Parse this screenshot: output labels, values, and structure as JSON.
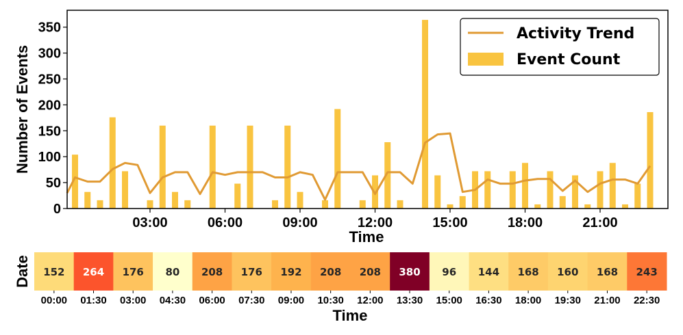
{
  "chart_data": [
    {
      "type": "bar+line",
      "title": "",
      "xlabel": "Time",
      "ylabel": "Number of Events",
      "xticks": [
        "03:00",
        "06:00",
        "09:00",
        "12:00",
        "15:00",
        "18:00",
        "21:00"
      ],
      "yticks": [
        0,
        50,
        100,
        150,
        200,
        250,
        300,
        350
      ],
      "ylim": [
        0,
        360
      ],
      "grid": false,
      "legend_position": "top-right",
      "series": [
        {
          "name": "Activity Trend",
          "type": "line",
          "color": "#e09a33",
          "x": [
            "00:00",
            "00:30",
            "01:00",
            "01:30",
            "02:00",
            "02:30",
            "03:00",
            "03:30",
            "04:00",
            "04:30",
            "05:00",
            "05:30",
            "06:00",
            "06:30",
            "07:00",
            "07:30",
            "08:00",
            "08:30",
            "09:00",
            "09:30",
            "10:00",
            "10:30",
            "11:00",
            "11:30",
            "12:00",
            "12:30",
            "13:00",
            "13:30",
            "14:00",
            "14:30",
            "15:00",
            "15:30",
            "16:00",
            "16:30",
            "17:00",
            "17:30",
            "18:00",
            "18:30",
            "19:00",
            "19:30",
            "20:00",
            "20:30",
            "21:00",
            "21:30",
            "22:00",
            "22:30",
            "23:00"
          ],
          "values": [
            60,
            52,
            52,
            76,
            88,
            84,
            30,
            60,
            70,
            70,
            28,
            70,
            65,
            70,
            70,
            70,
            60,
            60,
            70,
            65,
            17,
            70,
            70,
            70,
            28,
            70,
            70,
            48,
            127,
            143,
            145,
            32,
            36,
            56,
            48,
            48,
            54,
            57,
            57,
            34,
            54,
            32,
            48,
            56,
            56,
            48,
            82
          ]
        },
        {
          "name": "Event Count",
          "type": "bar",
          "color": "#f9c440",
          "x": [
            "00:00",
            "00:30",
            "01:00",
            "01:30",
            "02:00",
            "02:30",
            "03:00",
            "03:30",
            "04:00",
            "04:30",
            "05:00",
            "05:30",
            "06:00",
            "06:30",
            "07:00",
            "07:30",
            "08:00",
            "08:30",
            "09:00",
            "09:30",
            "10:00",
            "10:30",
            "11:00",
            "11:30",
            "12:00",
            "12:30",
            "13:00",
            "13:30",
            "14:00",
            "14:30",
            "15:00",
            "15:30",
            "16:00",
            "16:30",
            "17:00",
            "17:30",
            "18:00",
            "18:30",
            "19:00",
            "19:30",
            "20:00",
            "20:30",
            "21:00",
            "21:30",
            "22:00",
            "22:30",
            "23:00"
          ],
          "values": [
            104,
            32,
            16,
            176,
            72,
            0,
            16,
            160,
            32,
            16,
            0,
            160,
            0,
            48,
            160,
            0,
            16,
            160,
            32,
            0,
            16,
            192,
            0,
            16,
            64,
            128,
            16,
            0,
            364,
            64,
            8,
            24,
            72,
            72,
            0,
            72,
            88,
            8,
            72,
            24,
            64,
            8,
            72,
            88,
            8,
            48,
            186
          ]
        }
      ]
    },
    {
      "type": "heatmap",
      "xlabel": "Time",
      "ylabel": "Date",
      "x": [
        "00:00",
        "01:30",
        "03:00",
        "04:30",
        "06:00",
        "07:30",
        "09:00",
        "10:30",
        "12:00",
        "13:30",
        "15:00",
        "16:30",
        "18:00",
        "19:30",
        "21:00",
        "22:30"
      ],
      "values": [
        152,
        264,
        176,
        80,
        208,
        176,
        192,
        208,
        208,
        380,
        96,
        144,
        168,
        160,
        168,
        243
      ],
      "colormap": "YlOrRd",
      "vmin": 80,
      "vmax": 380
    }
  ]
}
